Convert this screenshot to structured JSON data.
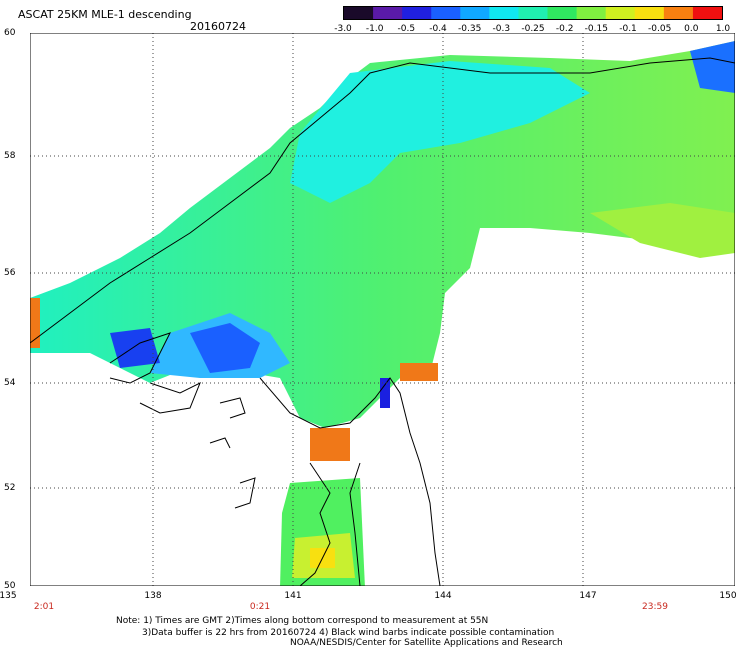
{
  "header": {
    "title": "ASCAT 25KM MLE-1 descending",
    "date": "20160724"
  },
  "colorbar": {
    "labels": [
      "-3.0",
      "-1.0",
      "-0.5",
      "-0.4",
      "-0.35",
      "-0.3",
      "-0.25",
      "-0.2",
      "-0.15",
      "-0.1",
      "-0.05",
      "0.0",
      "1.0"
    ],
    "colors": [
      "#1a0a2a",
      "#5a1aa8",
      "#2020e0",
      "#1a60ff",
      "#10a8ff",
      "#10e8f0",
      "#20f0b0",
      "#30e860",
      "#80f040",
      "#d0f020",
      "#f8e010",
      "#f88010",
      "#f01010"
    ]
  },
  "map": {
    "lat_labels": [
      "60",
      "58",
      "56",
      "54",
      "52",
      "50"
    ],
    "lon_labels": [
      "135",
      "138",
      "141",
      "144",
      "147",
      "150"
    ],
    "time_labels": [
      "2:01",
      "0:21",
      "23:59"
    ],
    "colors": {
      "water_cyan": "#20f0e0",
      "water_green": "#30f090",
      "water_lime": "#80f050",
      "water_yellow": "#d0f020",
      "water_orange": "#f07818",
      "water_blue": "#1840f0",
      "water_sky": "#30b8ff",
      "land": "#ffffff",
      "coast": "#000000",
      "grid": "#444444"
    }
  },
  "footer": {
    "note_line1": "Note: 1) Times are GMT 2)Times along bottom correspond to measurement at 55N",
    "note_line2": "3)Data buffer is 22 hrs from 20160724 4) Black wind barbs indicate possible contamination",
    "credit": "NOAA/NESDIS/Center for Satellite Applications and Research"
  }
}
